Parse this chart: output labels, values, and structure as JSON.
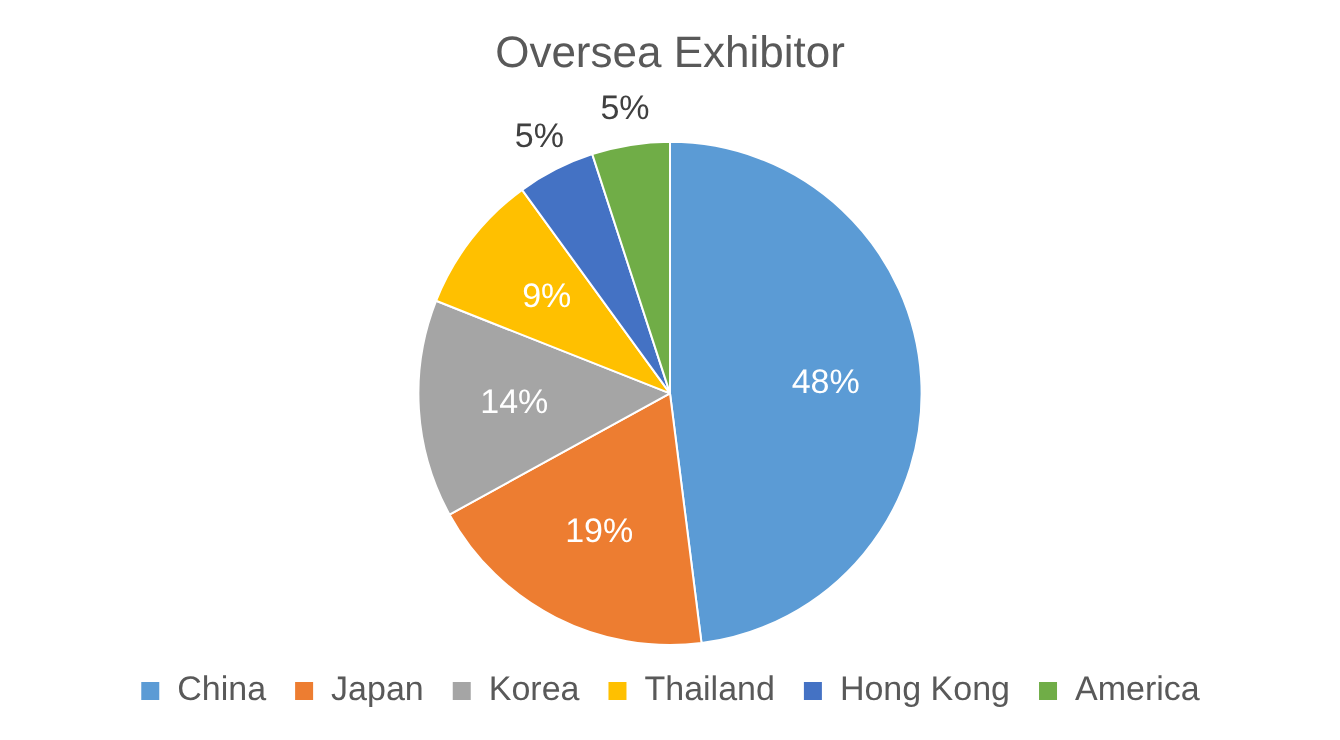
{
  "chart_data": {
    "type": "pie",
    "title": "Oversea Exhibitor",
    "categories": [
      "China",
      "Japan",
      "Korea",
      "Thailand",
      "Hong Kong",
      "America"
    ],
    "values": [
      48,
      19,
      14,
      9,
      5,
      5
    ],
    "colors": [
      "#5b9bd5",
      "#ed7d31",
      "#a5a5a5",
      "#ffc000",
      "#4472c4",
      "#70ad47"
    ],
    "value_labels": [
      "48%",
      "19%",
      "14%",
      "9%",
      "5%",
      "5%"
    ],
    "legend": "bottom"
  }
}
